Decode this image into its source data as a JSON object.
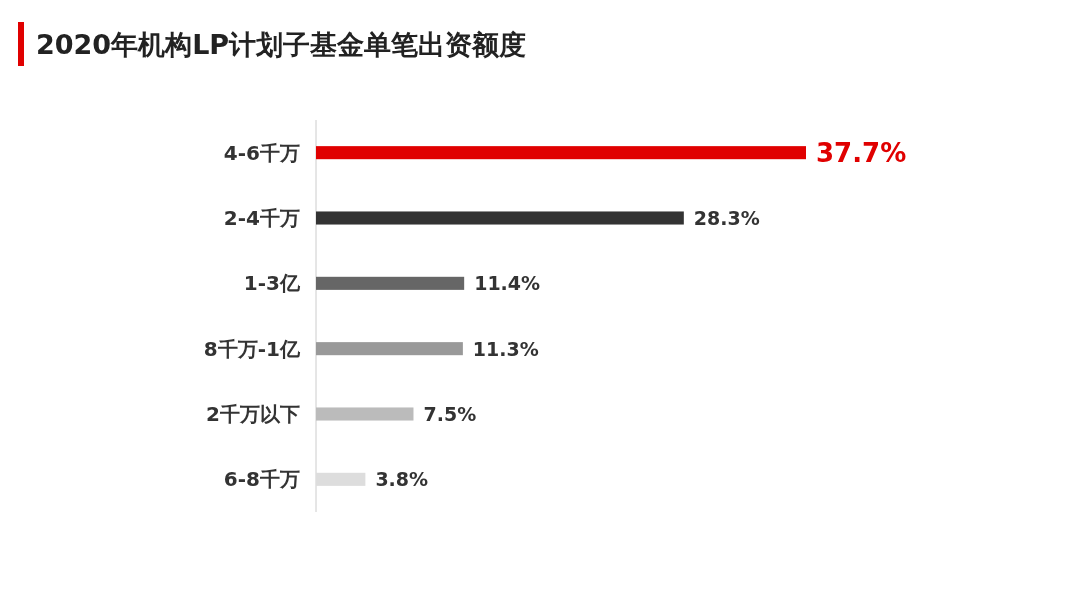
{
  "chart_data": {
    "type": "bar",
    "orientation": "horizontal",
    "title": "2020年机构LP计划子基金单笔出资额度",
    "categories": [
      "4-6千万",
      "2-4千万",
      "1-3亿",
      "8千万-1亿",
      "2千万以下",
      "6-8千万"
    ],
    "values": [
      37.7,
      28.3,
      11.4,
      11.3,
      7.5,
      3.8
    ],
    "value_labels": [
      "37.7%",
      "28.3%",
      "11.4%",
      "11.3%",
      "7.5%",
      "3.8%"
    ],
    "colors": [
      "#e00000",
      "#333333",
      "#666666",
      "#999999",
      "#bbbbbb",
      "#dddddd"
    ]
  }
}
